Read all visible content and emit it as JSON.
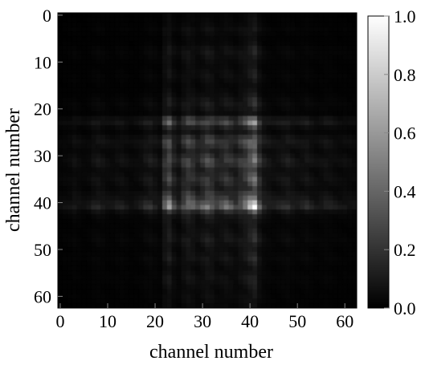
{
  "chart_data": {
    "type": "heatmap",
    "title": "",
    "xlabel": "channel number",
    "ylabel": "channel number",
    "n_channels": 63,
    "xlim": [
      0,
      62
    ],
    "ylim": [
      0,
      62
    ],
    "x_ticks": [
      0,
      10,
      20,
      30,
      40,
      50,
      60
    ],
    "y_ticks": [
      0,
      10,
      20,
      30,
      40,
      50,
      60
    ],
    "y_axis_direction": "top-to-bottom",
    "colorbar": {
      "range": [
        0.0,
        1.0
      ],
      "ticks": [
        "0.0",
        "0.2",
        "0.4",
        "0.6",
        "0.8",
        "1.0"
      ],
      "colormap": "gray",
      "location": "right"
    },
    "channel_profile": {
      "description_values": "approximate per-channel magnitude; matrix value ≈ outer product",
      "values": [
        0.18,
        0.2,
        0.22,
        0.28,
        0.24,
        0.2,
        0.22,
        0.3,
        0.34,
        0.3,
        0.26,
        0.24,
        0.28,
        0.3,
        0.26,
        0.22,
        0.24,
        0.28,
        0.36,
        0.4,
        0.34,
        0.28,
        0.62,
        0.78,
        0.5,
        0.38,
        0.58,
        0.7,
        0.62,
        0.5,
        0.6,
        0.72,
        0.66,
        0.52,
        0.56,
        0.64,
        0.58,
        0.5,
        0.62,
        0.72,
        0.88,
        1.0,
        0.6,
        0.4,
        0.34,
        0.3,
        0.32,
        0.36,
        0.4,
        0.34,
        0.3,
        0.32,
        0.36,
        0.3,
        0.26,
        0.28,
        0.32,
        0.3,
        0.26,
        0.24,
        0.26,
        0.24,
        0.22
      ]
    }
  }
}
